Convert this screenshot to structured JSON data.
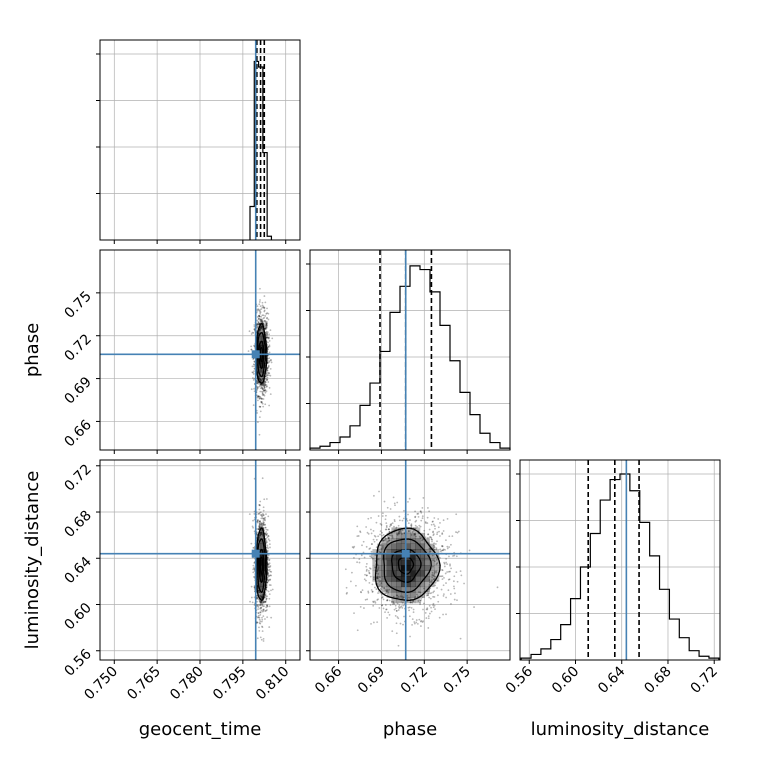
{
  "colors": {
    "truth": "#4682b4",
    "hist": "#000000",
    "grid": "#b0b0b0",
    "points": "#000000"
  },
  "chart_data": {
    "type": "corner",
    "parameters": [
      {
        "key": "geocent_time",
        "label": "geocent_time",
        "range": [
          0.745,
          0.815
        ],
        "ticks": [
          "0.750",
          "0.765",
          "0.780",
          "0.795",
          "0.810"
        ],
        "tick_values": [
          0.75,
          0.765,
          0.78,
          0.795,
          0.81
        ],
        "truth": 0.7995
      },
      {
        "key": "phase",
        "label": "phase",
        "range": [
          0.64,
          0.78
        ],
        "ticks": [
          "0.66",
          "0.69",
          "0.72",
          "0.75"
        ],
        "tick_values": [
          0.66,
          0.69,
          0.72,
          0.75
        ],
        "truth": 0.707
      },
      {
        "key": "luminosity_distance",
        "label": "luminosity_distance",
        "range": [
          0.552,
          0.725
        ],
        "ticks": [
          "0.56",
          "0.60",
          "0.64",
          "0.68",
          "0.72"
        ],
        "tick_values": [
          0.56,
          0.6,
          0.64,
          0.68,
          0.72
        ],
        "truth": 0.644
      }
    ],
    "marginals": [
      {
        "param": "geocent_time",
        "bin_start": 0.7975,
        "bin_width": 0.0015,
        "counts": [
          0.18,
          0.96,
          0.93,
          0.47,
          0.02
        ],
        "quantiles": [
          0.7999,
          0.8012,
          0.8025
        ]
      },
      {
        "param": "phase",
        "bin_start": 0.64,
        "bin_width": 0.007,
        "counts": [
          0.01,
          0.02,
          0.04,
          0.07,
          0.13,
          0.24,
          0.36,
          0.53,
          0.74,
          0.88,
          0.99,
          0.97,
          0.85,
          0.67,
          0.48,
          0.31,
          0.19,
          0.09,
          0.04,
          0.01
        ],
        "quantiles": [
          0.689,
          0.707,
          0.725
        ]
      },
      {
        "param": "luminosity_distance",
        "bin_start": 0.553,
        "bin_width": 0.00855,
        "counts": [
          0.01,
          0.03,
          0.06,
          0.11,
          0.19,
          0.33,
          0.5,
          0.68,
          0.86,
          0.97,
          1.0,
          0.91,
          0.74,
          0.56,
          0.38,
          0.22,
          0.12,
          0.05,
          0.02,
          0.01
        ],
        "quantiles": [
          0.611,
          0.634,
          0.655
        ]
      }
    ],
    "joint": [
      {
        "x": "geocent_time",
        "y": "phase",
        "mean": [
          0.8015,
          0.707
        ],
        "sd": [
          0.0012,
          0.014
        ]
      },
      {
        "x": "geocent_time",
        "y": "luminosity_distance",
        "mean": [
          0.8015,
          0.634
        ],
        "sd": [
          0.0012,
          0.021
        ]
      },
      {
        "x": "phase",
        "y": "luminosity_distance",
        "mean": [
          0.707,
          0.634
        ],
        "sd": [
          0.015,
          0.021
        ]
      }
    ],
    "grid": true,
    "tick_label_rotation": 45
  }
}
